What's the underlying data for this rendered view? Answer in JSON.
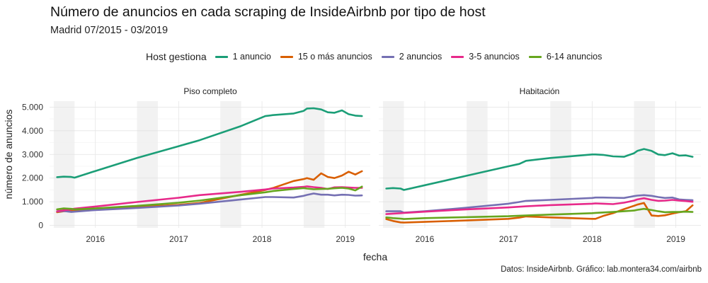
{
  "chart_data": {
    "type": "line",
    "title": "Número de anuncios en cada scraping de InsideAirbnb por tipo de host",
    "subtitle": "Madrid 07/2015 - 03/2019",
    "xlabel": "fecha",
    "ylabel": "número de anuncios",
    "caption": "Datos: InsideAirbnb. Gráfico: lab.montera34.com/airbnb",
    "legend_title": "Host gestiona",
    "legend_position": "top",
    "x_ticks": [
      "2016",
      "2017",
      "2018",
      "2019"
    ],
    "y_ticks": [
      "0",
      "1.000",
      "2.000",
      "3.000",
      "4.000",
      "5.000"
    ],
    "xlim": [
      2015.45,
      2019.3
    ],
    "ylim": [
      -100,
      5250
    ],
    "grid": true,
    "shaded_bands": [
      [
        2015.5,
        2015.75
      ],
      [
        2016.5,
        2016.75
      ],
      [
        2017.5,
        2017.75
      ],
      [
        2018.5,
        2018.75
      ]
    ],
    "series_meta": [
      {
        "name": "1 anuncio",
        "color": "#1b9e77"
      },
      {
        "name": "15 o más anuncios",
        "color": "#d95f02"
      },
      {
        "name": "2 anuncios",
        "color": "#7570b3"
      },
      {
        "name": "3-5 anuncios",
        "color": "#e7298a"
      },
      {
        "name": "6-14 anuncios",
        "color": "#66a61e"
      }
    ],
    "panels": [
      {
        "title": "Piso completo",
        "series": [
          {
            "name": "1 anuncio",
            "x": [
              2015.54,
              2015.62,
              2015.71,
              2015.75,
              2016.0,
              2016.5,
              2017.0,
              2017.25,
              2017.75,
              2018.04,
              2018.13,
              2018.38,
              2018.5,
              2018.54,
              2018.62,
              2018.71,
              2018.79,
              2018.87,
              2018.96,
              2019.04,
              2019.12,
              2019.2
            ],
            "y": [
              2040,
              2060,
              2050,
              2020,
              2300,
              2850,
              3350,
              3600,
              4200,
              4620,
              4660,
              4730,
              4840,
              4940,
              4950,
              4900,
              4780,
              4760,
              4860,
              4700,
              4640,
              4620
            ]
          },
          {
            "name": "15 o más anuncios",
            "x": [
              2015.54,
              2015.62,
              2015.71,
              2015.75,
              2016.0,
              2016.5,
              2017.0,
              2017.25,
              2017.75,
              2018.04,
              2018.13,
              2018.38,
              2018.5,
              2018.54,
              2018.62,
              2018.71,
              2018.79,
              2018.87,
              2018.96,
              2019.04,
              2019.12,
              2019.2
            ],
            "y": [
              560,
              600,
              620,
              610,
              680,
              780,
              870,
              950,
              1300,
              1500,
              1580,
              1880,
              1960,
              2000,
              1930,
              2200,
              2050,
              2000,
              2110,
              2270,
              2150,
              2290
            ]
          },
          {
            "name": "2 anuncios",
            "x": [
              2015.54,
              2015.62,
              2015.71,
              2015.75,
              2016.0,
              2016.5,
              2017.0,
              2017.25,
              2017.75,
              2018.04,
              2018.13,
              2018.38,
              2018.5,
              2018.54,
              2018.62,
              2018.71,
              2018.79,
              2018.87,
              2018.96,
              2019.04,
              2019.12,
              2019.2
            ],
            "y": [
              590,
              610,
              570,
              580,
              650,
              740,
              840,
              920,
              1100,
              1200,
              1200,
              1180,
              1250,
              1290,
              1350,
              1300,
              1300,
              1270,
              1300,
              1290,
              1260,
              1270
            ]
          },
          {
            "name": "3-5 anuncios",
            "x": [
              2015.54,
              2015.62,
              2015.71,
              2015.75,
              2016.0,
              2016.5,
              2017.0,
              2017.25,
              2017.75,
              2018.04,
              2018.13,
              2018.38,
              2018.5,
              2018.54,
              2018.62,
              2018.71,
              2018.79,
              2018.87,
              2018.96,
              2019.04,
              2019.12,
              2019.2
            ],
            "y": [
              600,
              640,
              680,
              710,
              800,
              990,
              1170,
              1280,
              1420,
              1520,
              1560,
              1600,
              1630,
              1650,
              1620,
              1590,
              1540,
              1610,
              1620,
              1600,
              1590,
              1590
            ]
          },
          {
            "name": "6-14 anuncios",
            "x": [
              2015.54,
              2015.62,
              2015.71,
              2015.75,
              2016.0,
              2016.5,
              2017.0,
              2017.25,
              2017.75,
              2018.04,
              2018.13,
              2018.38,
              2018.5,
              2018.54,
              2018.62,
              2018.71,
              2018.79,
              2018.87,
              2018.96,
              2019.04,
              2019.12,
              2019.2
            ],
            "y": [
              680,
              720,
              700,
              680,
              720,
              830,
              960,
              1050,
              1280,
              1400,
              1450,
              1540,
              1580,
              1560,
              1530,
              1540,
              1550,
              1570,
              1590,
              1560,
              1480,
              1640
            ]
          }
        ]
      },
      {
        "title": "Habitación",
        "series": [
          {
            "name": "1 anuncio",
            "x": [
              2015.54,
              2015.62,
              2015.71,
              2015.75,
              2016.0,
              2016.5,
              2017.0,
              2017.13,
              2017.21,
              2017.5,
              2018.0,
              2018.04,
              2018.13,
              2018.25,
              2018.38,
              2018.5,
              2018.54,
              2018.62,
              2018.71,
              2018.79,
              2018.87,
              2018.96,
              2019.04,
              2019.12,
              2019.2
            ],
            "y": [
              1560,
              1580,
              1560,
              1500,
              1700,
              2100,
              2500,
              2600,
              2730,
              2850,
              3000,
              3000,
              2980,
              2920,
              2900,
              3050,
              3150,
              3230,
              3150,
              3000,
              2970,
              3050,
              2950,
              2960,
              2900
            ]
          },
          {
            "name": "15 o más anuncios",
            "x": [
              2015.54,
              2015.62,
              2015.71,
              2015.75,
              2016.0,
              2016.5,
              2017.0,
              2017.13,
              2017.21,
              2017.5,
              2018.0,
              2018.04,
              2018.13,
              2018.25,
              2018.38,
              2018.5,
              2018.54,
              2018.62,
              2018.71,
              2018.79,
              2018.87,
              2018.96,
              2019.04,
              2019.12,
              2019.2
            ],
            "y": [
              270,
              190,
              130,
              120,
              150,
              210,
              280,
              330,
              380,
              340,
              280,
              280,
              400,
              520,
              690,
              830,
              880,
              950,
              420,
              400,
              430,
              500,
              560,
              600,
              850
            ]
          },
          {
            "name": "2 anuncios",
            "x": [
              2015.54,
              2015.62,
              2015.71,
              2015.75,
              2016.0,
              2016.5,
              2017.0,
              2017.13,
              2017.21,
              2017.5,
              2018.0,
              2018.04,
              2018.13,
              2018.25,
              2018.38,
              2018.5,
              2018.54,
              2018.62,
              2018.71,
              2018.79,
              2018.87,
              2018.96,
              2019.04,
              2019.12,
              2019.2
            ],
            "y": [
              600,
              600,
              600,
              540,
              600,
              750,
              920,
              990,
              1040,
              1080,
              1160,
              1180,
              1180,
              1170,
              1160,
              1240,
              1260,
              1280,
              1250,
              1200,
              1160,
              1180,
              1100,
              1080,
              1070
            ]
          },
          {
            "name": "3-5 anuncios",
            "x": [
              2015.54,
              2015.62,
              2015.71,
              2015.75,
              2016.0,
              2016.5,
              2017.0,
              2017.13,
              2017.21,
              2017.5,
              2018.0,
              2018.04,
              2018.13,
              2018.25,
              2018.38,
              2018.5,
              2018.54,
              2018.62,
              2018.71,
              2018.79,
              2018.87,
              2018.96,
              2019.04,
              2019.12,
              2019.2
            ],
            "y": [
              480,
              500,
              520,
              530,
              580,
              680,
              760,
              790,
              810,
              860,
              920,
              930,
              920,
              900,
              960,
              1050,
              1100,
              1150,
              1080,
              1040,
              1050,
              1080,
              1050,
              1030,
              1000
            ]
          },
          {
            "name": "6-14 anuncios",
            "x": [
              2015.54,
              2015.62,
              2015.71,
              2015.75,
              2016.0,
              2016.5,
              2017.0,
              2017.13,
              2017.21,
              2017.5,
              2018.0,
              2018.04,
              2018.13,
              2018.25,
              2018.38,
              2018.5,
              2018.54,
              2018.62,
              2018.71,
              2018.79,
              2018.87,
              2018.96,
              2019.04,
              2019.12,
              2019.2
            ],
            "y": [
              340,
              310,
              290,
              270,
              310,
              350,
              390,
              410,
              420,
              460,
              520,
              530,
              550,
              570,
              600,
              630,
              660,
              700,
              650,
              600,
              560,
              570,
              570,
              580,
              570
            ]
          }
        ]
      }
    ]
  }
}
